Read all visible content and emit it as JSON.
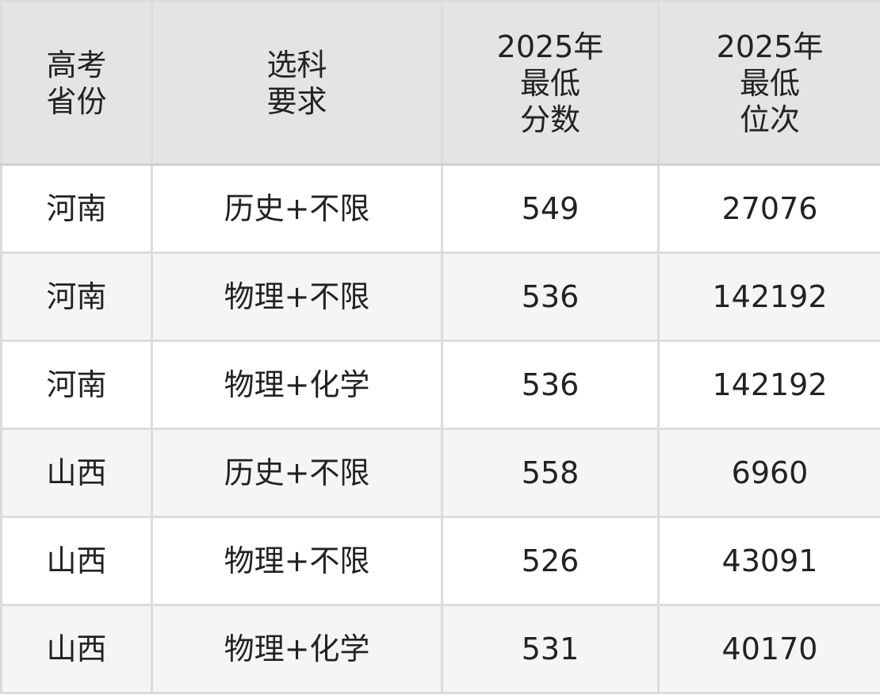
{
  "table": {
    "headers": [
      "高考\n省份",
      "选科\n要求",
      "2025年\n最低\n分数",
      "2025年\n最低\n位次"
    ],
    "rows": [
      [
        "河南",
        "历史+不限",
        "549",
        "27076"
      ],
      [
        "河南",
        "物理+不限",
        "536",
        "142192"
      ],
      [
        "河南",
        "物理+化学",
        "536",
        "142192"
      ],
      [
        "山西",
        "历史+不限",
        "558",
        "6960"
      ],
      [
        "山西",
        "物理+不限",
        "526",
        "43091"
      ],
      [
        "山西",
        "物理+化学",
        "531",
        "40170"
      ]
    ]
  }
}
